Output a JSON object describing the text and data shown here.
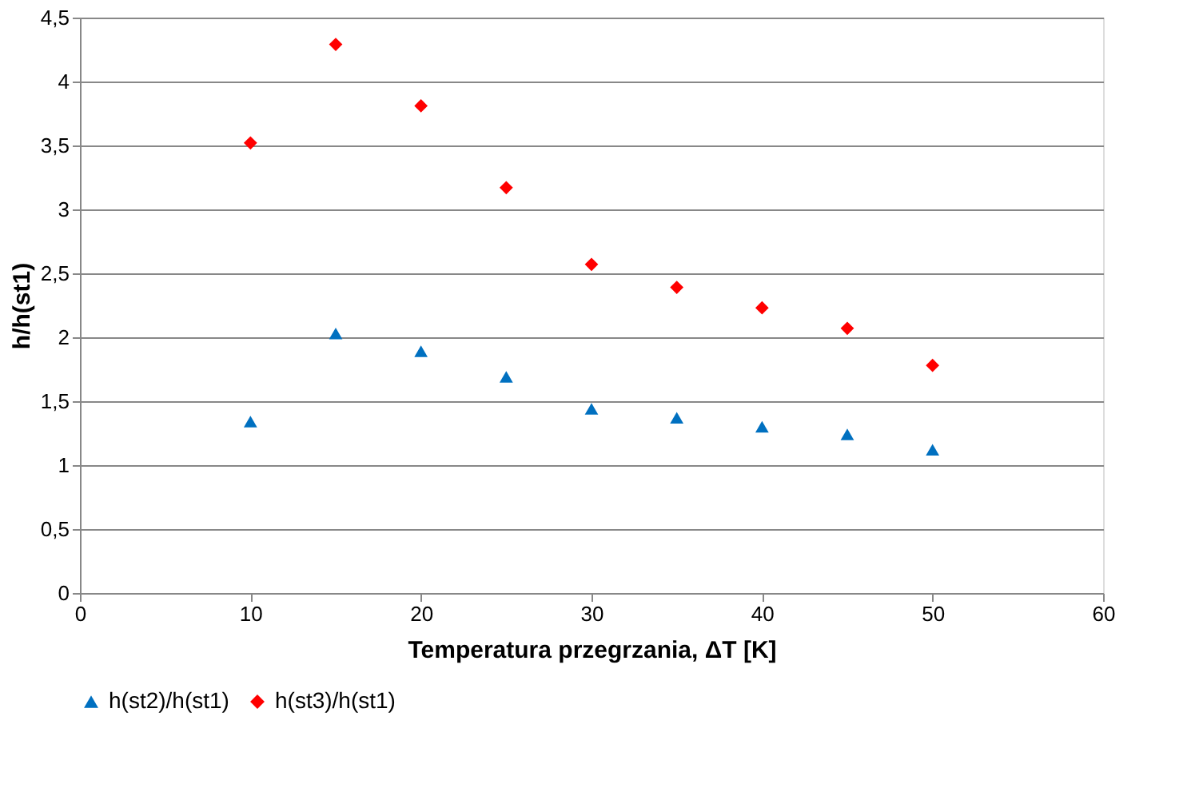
{
  "chart_data": {
    "type": "scatter",
    "xlabel": "Temperatura przegrzania, ΔT [K]",
    "ylabel": "h/h(st1)",
    "x": [
      10,
      15,
      20,
      25,
      30,
      35,
      40,
      45,
      50
    ],
    "series": [
      {
        "name": "h(st2)/h(st1)",
        "color": "#0070c0",
        "marker": "triangle",
        "values": [
          1.34,
          2.03,
          1.89,
          1.69,
          1.44,
          1.37,
          1.3,
          1.24,
          1.12
        ]
      },
      {
        "name": "h(st3)/h(st1)",
        "color": "#ff0000",
        "marker": "diamond",
        "values": [
          3.52,
          4.29,
          3.81,
          3.17,
          2.57,
          2.39,
          2.23,
          2.07,
          1.78
        ]
      }
    ],
    "xlim": [
      0,
      60
    ],
    "xticks": [
      0,
      10,
      20,
      30,
      40,
      50,
      60
    ],
    "ylim": [
      0,
      4.5
    ],
    "yticks": [
      0,
      {
        "value": 0.5,
        "label": "0,5"
      },
      1,
      {
        "value": 1.5,
        "label": "1,5"
      },
      2,
      {
        "value": 2.5,
        "label": "2,5"
      },
      3,
      {
        "value": 3.5,
        "label": "3,5"
      },
      4,
      {
        "value": 4.5,
        "label": "4,5"
      }
    ],
    "grid": "y",
    "legend": "bottom"
  }
}
